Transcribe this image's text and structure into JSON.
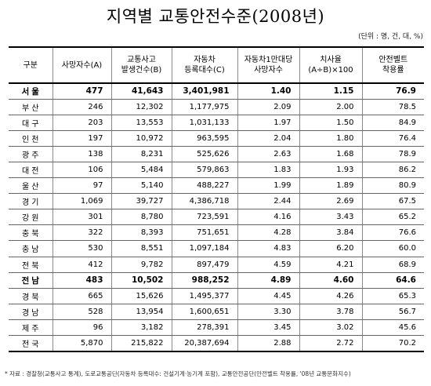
{
  "title": "지역별 교통안전수준(2008년)",
  "unit_note": "(단위 : 명, 건, 대, %)",
  "table": {
    "headers": [
      [
        "구분"
      ],
      [
        "사망자수(A)"
      ],
      [
        "교통사고",
        "발생건수(B)"
      ],
      [
        "자동차",
        "등록대수(C)"
      ],
      [
        "자동차1만대당",
        "사망자수"
      ],
      [
        "치사율",
        "(A÷B)×100"
      ],
      [
        "안전벨트",
        "착용률"
      ]
    ],
    "rows": [
      {
        "region": "서울",
        "deaths": "477",
        "accidents": "41,643",
        "vehicles": "3,401,981",
        "per10k": "1.40",
        "fatality": "1.15",
        "seatbelt": "76.9",
        "highlight": true
      },
      {
        "region": "부산",
        "deaths": "246",
        "accidents": "12,302",
        "vehicles": "1,177,975",
        "per10k": "2.09",
        "fatality": "2.00",
        "seatbelt": "78.5"
      },
      {
        "region": "대구",
        "deaths": "203",
        "accidents": "13,553",
        "vehicles": "1,031,133",
        "per10k": "1.97",
        "fatality": "1.50",
        "seatbelt": "84.9"
      },
      {
        "region": "인천",
        "deaths": "197",
        "accidents": "10,972",
        "vehicles": "963,595",
        "per10k": "2.04",
        "fatality": "1.80",
        "seatbelt": "76.4"
      },
      {
        "region": "광주",
        "deaths": "138",
        "accidents": "8,231",
        "vehicles": "525,626",
        "per10k": "2.63",
        "fatality": "1.68",
        "seatbelt": "78.9"
      },
      {
        "region": "대전",
        "deaths": "106",
        "accidents": "5,484",
        "vehicles": "579,863",
        "per10k": "1.83",
        "fatality": "1.93",
        "seatbelt": "86.2"
      },
      {
        "region": "울산",
        "deaths": "97",
        "accidents": "5,140",
        "vehicles": "488,227",
        "per10k": "1.99",
        "fatality": "1.89",
        "seatbelt": "80.9"
      },
      {
        "region": "경기",
        "deaths": "1,069",
        "accidents": "39,727",
        "vehicles": "4,386,718",
        "per10k": "2.44",
        "fatality": "2.69",
        "seatbelt": "67.5"
      },
      {
        "region": "강원",
        "deaths": "301",
        "accidents": "8,780",
        "vehicles": "723,591",
        "per10k": "4.16",
        "fatality": "3.43",
        "seatbelt": "65.2"
      },
      {
        "region": "충북",
        "deaths": "322",
        "accidents": "8,393",
        "vehicles": "751,651",
        "per10k": "4.28",
        "fatality": "3.84",
        "seatbelt": "76.6"
      },
      {
        "region": "충남",
        "deaths": "530",
        "accidents": "8,551",
        "vehicles": "1,097,184",
        "per10k": "4.83",
        "fatality": "6.20",
        "seatbelt": "60.0"
      },
      {
        "region": "전북",
        "deaths": "412",
        "accidents": "9,782",
        "vehicles": "897,479",
        "per10k": "4.59",
        "fatality": "4.21",
        "seatbelt": "68.9"
      },
      {
        "region": "전남",
        "deaths": "483",
        "accidents": "10,502",
        "vehicles": "988,252",
        "per10k": "4.89",
        "fatality": "4.60",
        "seatbelt": "64.6",
        "highlight": true
      },
      {
        "region": "경북",
        "deaths": "665",
        "accidents": "15,626",
        "vehicles": "1,495,377",
        "per10k": "4.45",
        "fatality": "4.26",
        "seatbelt": "65.3"
      },
      {
        "region": "경남",
        "deaths": "528",
        "accidents": "13,954",
        "vehicles": "1,600,651",
        "per10k": "3.30",
        "fatality": "3.78",
        "seatbelt": "56.7"
      },
      {
        "region": "제주",
        "deaths": "96",
        "accidents": "3,182",
        "vehicles": "278,391",
        "per10k": "3.45",
        "fatality": "3.02",
        "seatbelt": "45.6"
      },
      {
        "region": "전국",
        "deaths": "5,870",
        "accidents": "215,822",
        "vehicles": "20,387,694",
        "per10k": "2.88",
        "fatality": "2.72",
        "seatbelt": "70.2"
      }
    ]
  },
  "footnote": "* 자료 : 경찰청(교통사고 통계), 도로교통공단(자동차 등록대수: 건설기계·농기계 포함), 교통안전공단(안전벨트 착용률, '08년 교통문화지수)"
}
